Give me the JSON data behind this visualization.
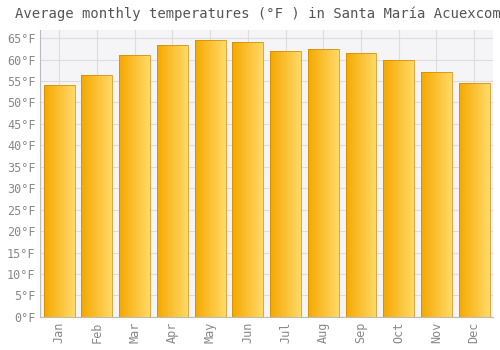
{
  "title": "Average monthly temperatures (°F ) in Santa María Acuexcomac",
  "months": [
    "Jan",
    "Feb",
    "Mar",
    "Apr",
    "May",
    "Jun",
    "Jul",
    "Aug",
    "Sep",
    "Oct",
    "Nov",
    "Dec"
  ],
  "values": [
    54,
    56.5,
    61,
    63.5,
    64.5,
    64,
    62,
    62.5,
    61.5,
    60,
    57,
    54.5
  ],
  "bar_color_left": "#F5A800",
  "bar_color_right": "#FFD966",
  "background_color": "#FFFFFF",
  "plot_bg_color": "#F5F5F8",
  "grid_color": "#DDDDDD",
  "title_color": "#555555",
  "tick_color": "#888888",
  "ylim": [
    0,
    67
  ],
  "title_fontsize": 10,
  "tick_fontsize": 8.5,
  "bar_width": 0.82
}
